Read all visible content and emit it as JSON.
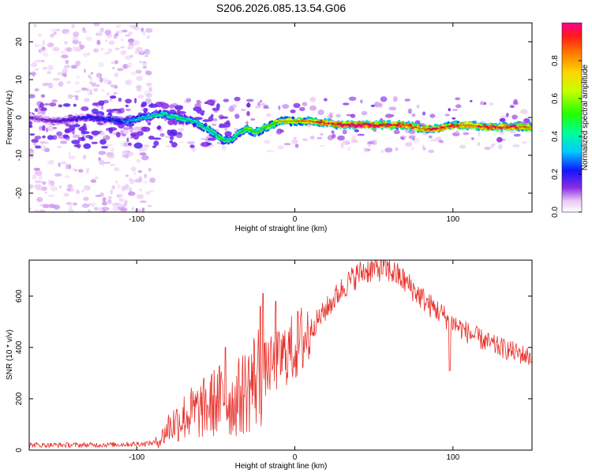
{
  "figure_title": "S206.2026.085.13.54.G06",
  "colors": {
    "snr_line": "#e8302a",
    "ridge_core": "#ff2a2a",
    "background": "#ffffff"
  },
  "chart_data": [
    {
      "type": "heatmap",
      "title": "S206.2026.085.13.54.G06",
      "xlabel": "Height of straight line (km)",
      "ylabel": "Frequency (Hz)",
      "xlim": [
        -168,
        150
      ],
      "ylim": [
        -25,
        25
      ],
      "xticks": [
        {
          "value": -100,
          "label": "-100"
        },
        {
          "value": 0,
          "label": "0"
        },
        {
          "value": 100,
          "label": "100"
        }
      ],
      "yticks": [
        {
          "value": -20,
          "label": "-20"
        },
        {
          "value": -10,
          "label": "-10"
        },
        {
          "value": 0,
          "label": "0"
        },
        {
          "value": 10,
          "label": "10"
        },
        {
          "value": 20,
          "label": "20"
        }
      ],
      "colorbar": {
        "label": "Normalized spectral amplitude",
        "range": [
          0,
          1
        ],
        "ticks": [
          {
            "value": 0.0,
            "label": "0.0"
          },
          {
            "value": 0.2,
            "label": "0.2"
          },
          {
            "value": 0.4,
            "label": "0.4"
          },
          {
            "value": 0.6,
            "label": "0.6"
          },
          {
            "value": 0.8,
            "label": "0.8"
          }
        ]
      },
      "ridge": {
        "x": [
          -168,
          -150,
          -130,
          -110,
          -95,
          -85,
          -75,
          -65,
          -55,
          -45,
          -40,
          -35,
          -30,
          -25,
          -20,
          -15,
          -10,
          -5,
          0,
          10,
          20,
          30,
          40,
          50,
          60,
          70,
          80,
          90,
          100,
          110,
          120,
          130,
          140,
          150
        ],
        "y": [
          0,
          -1,
          0,
          -1,
          0,
          1,
          0,
          -1,
          -3,
          -6,
          -6,
          -4,
          -3,
          -4,
          -3,
          -2,
          -1,
          -1,
          -1,
          -1,
          -1.5,
          -2,
          -2,
          -2,
          -2,
          -2,
          -3,
          -3,
          -2,
          -2,
          -2.5,
          -2.5,
          -2.5,
          -2.5
        ],
        "intensity": [
          0.1,
          0.15,
          0.2,
          0.25,
          0.35,
          0.4,
          0.45,
          0.4,
          0.45,
          0.5,
          0.4,
          0.45,
          0.55,
          0.5,
          0.55,
          0.6,
          0.65,
          0.7,
          0.7,
          0.8,
          0.9,
          0.95,
          1.0,
          1.0,
          0.95,
          0.9,
          0.85,
          0.9,
          0.9,
          0.85,
          0.95,
          0.95,
          0.9,
          0.85
        ]
      }
    },
    {
      "type": "line",
      "xlabel": "Height of straight line (km)",
      "ylabel": "SNR (10 * v/v)",
      "xlim": [
        -168,
        150
      ],
      "ylim": [
        0,
        740
      ],
      "xticks": [
        {
          "value": -100,
          "label": "-100"
        },
        {
          "value": 0,
          "label": "0"
        },
        {
          "value": 100,
          "label": "100"
        }
      ],
      "yticks": [
        {
          "value": 0,
          "label": "0"
        },
        {
          "value": 200,
          "label": "200"
        },
        {
          "value": 400,
          "label": "400"
        },
        {
          "value": 600,
          "label": "600"
        }
      ],
      "series": [
        {
          "name": "SNR",
          "x": [
            -168,
            -150,
            -130,
            -110,
            -95,
            -88,
            -85,
            -80,
            -75,
            -70,
            -65,
            -60,
            -55,
            -50,
            -45,
            -40,
            -35,
            -30,
            -25,
            -20,
            -15,
            -10,
            -5,
            0,
            5,
            10,
            15,
            20,
            25,
            30,
            35,
            40,
            45,
            50,
            55,
            60,
            65,
            70,
            75,
            80,
            85,
            90,
            95,
            100,
            105,
            110,
            115,
            120,
            125,
            130,
            135,
            140,
            145,
            150
          ],
          "y": [
            20,
            20,
            20,
            22,
            25,
            30,
            40,
            90,
            110,
            130,
            145,
            155,
            170,
            190,
            200,
            180,
            210,
            240,
            280,
            310,
            330,
            350,
            380,
            400,
            430,
            470,
            510,
            550,
            590,
            630,
            660,
            685,
            700,
            705,
            710,
            700,
            680,
            655,
            625,
            595,
            565,
            545,
            520,
            495,
            475,
            455,
            440,
            425,
            410,
            400,
            390,
            380,
            370,
            360
          ]
        }
      ],
      "spikes": [
        {
          "x": -44,
          "y": 400
        },
        {
          "x": -20,
          "y": 610
        },
        {
          "x": -22,
          "y": 560
        },
        {
          "x": -12,
          "y": 580
        },
        {
          "x": 98,
          "y": 310
        }
      ]
    }
  ]
}
